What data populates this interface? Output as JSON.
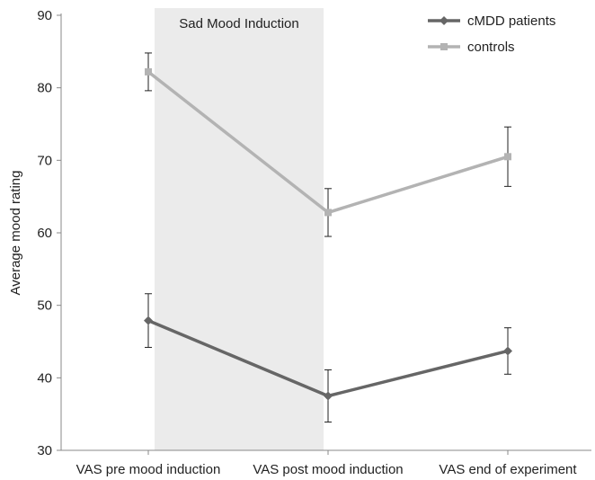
{
  "chart_data": {
    "type": "line",
    "categories": [
      "VAS pre mood induction",
      "VAS post mood induction",
      "VAS end of experiment"
    ],
    "ylabel": "Average mood rating",
    "xlabel": "",
    "ylim": [
      30,
      90
    ],
    "yticks": [
      30,
      40,
      50,
      60,
      70,
      80,
      90
    ],
    "grid": false,
    "legend": "top-right",
    "annotation": {
      "text": "Sad Mood Induction",
      "span_categories": [
        "VAS pre mood induction",
        "VAS post mood induction"
      ],
      "color": "#ebebeb"
    },
    "series": [
      {
        "name": "cMDD patients",
        "values": [
          47.9,
          37.5,
          43.7
        ],
        "error": [
          3.7,
          3.6,
          3.2
        ],
        "color": "#666666",
        "marker": "diamond"
      },
      {
        "name": "controls",
        "values": [
          82.2,
          62.8,
          70.5
        ],
        "error": [
          2.6,
          3.3,
          4.1
        ],
        "color": "#b3b3b3",
        "marker": "square"
      }
    ]
  }
}
